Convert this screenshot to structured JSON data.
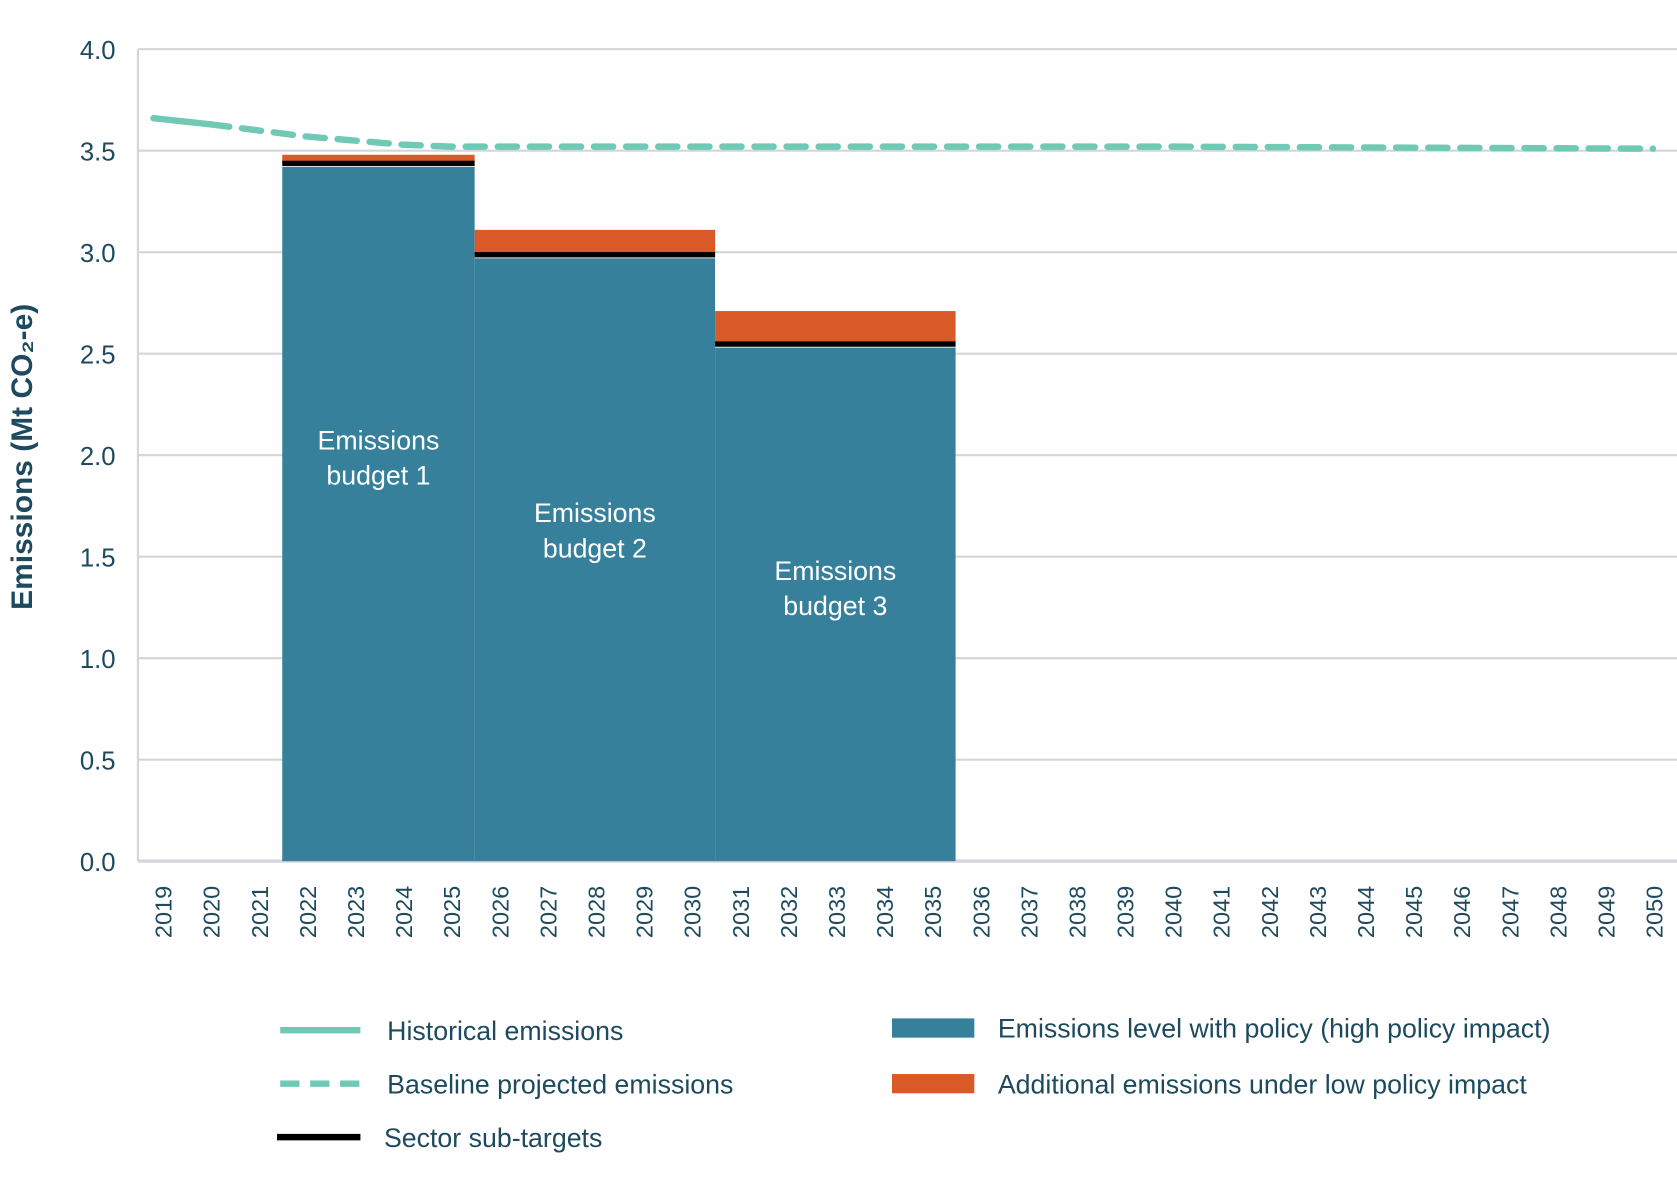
{
  "chart_data": {
    "type": "bar",
    "title": "",
    "xlabel": "",
    "ylabel": "Emissions (Mt CO₂-e)",
    "ylim": [
      0,
      4.0
    ],
    "yticks": [
      "0.0",
      "0.5",
      "1.0",
      "1.5",
      "2.0",
      "2.5",
      "3.0",
      "3.5",
      "4.0"
    ],
    "grid": true,
    "categories": [
      "2019",
      "2020",
      "2021",
      "2022",
      "2023",
      "2024",
      "2025",
      "2026",
      "2027",
      "2028",
      "2029",
      "2030",
      "2031",
      "2032",
      "2033",
      "2034",
      "2035",
      "2036",
      "2037",
      "2038",
      "2039",
      "2040",
      "2041",
      "2042",
      "2043",
      "2044",
      "2045",
      "2046",
      "2047",
      "2048",
      "2049",
      "2050"
    ],
    "budgets": [
      {
        "label": "Emissions budget 1",
        "start": "2022",
        "end": "2025",
        "high_policy": 3.42,
        "sub_target": 3.44,
        "low_policy_total": 3.48
      },
      {
        "label": "Emissions budget 2",
        "start": "2026",
        "end": "2030",
        "high_policy": 2.97,
        "sub_target": 2.99,
        "low_policy_total": 3.11
      },
      {
        "label": "Emissions budget 3",
        "start": "2031",
        "end": "2035",
        "high_policy": 2.53,
        "sub_target": 2.55,
        "low_policy_total": 2.71
      }
    ],
    "series": [
      {
        "name": "Historical emissions",
        "style": "solid",
        "x": [
          "2019",
          "2020"
        ],
        "y": [
          3.66,
          3.63
        ]
      },
      {
        "name": "Baseline projected emissions",
        "style": "dashed",
        "x": [
          "2020",
          "2021",
          "2022",
          "2023",
          "2024",
          "2025",
          "2030",
          "2040",
          "2050"
        ],
        "y": [
          3.63,
          3.6,
          3.57,
          3.55,
          3.53,
          3.52,
          3.52,
          3.52,
          3.51
        ]
      }
    ],
    "legend": {
      "placement": "bottom",
      "items": [
        {
          "label": "Historical emissions",
          "kind": "line-solid",
          "color": "#6fc9b5"
        },
        {
          "label": "Baseline projected emissions",
          "kind": "line-dashed",
          "color": "#6fc9b5"
        },
        {
          "label": "Sector sub-targets",
          "kind": "line-solid",
          "color": "#000000"
        },
        {
          "label": "Emissions level with policy (high policy impact)",
          "kind": "box",
          "color": "#36809b"
        },
        {
          "label": "Additional emissions under low policy impact",
          "kind": "box",
          "color": "#d95a27"
        }
      ]
    },
    "colors": {
      "high_policy": "#36809b",
      "low_policy": "#d95a27",
      "sub_target": "#000000",
      "line": "#6fc9b5",
      "grid": "#d3d5dd",
      "text": "#1d4a5e"
    }
  }
}
